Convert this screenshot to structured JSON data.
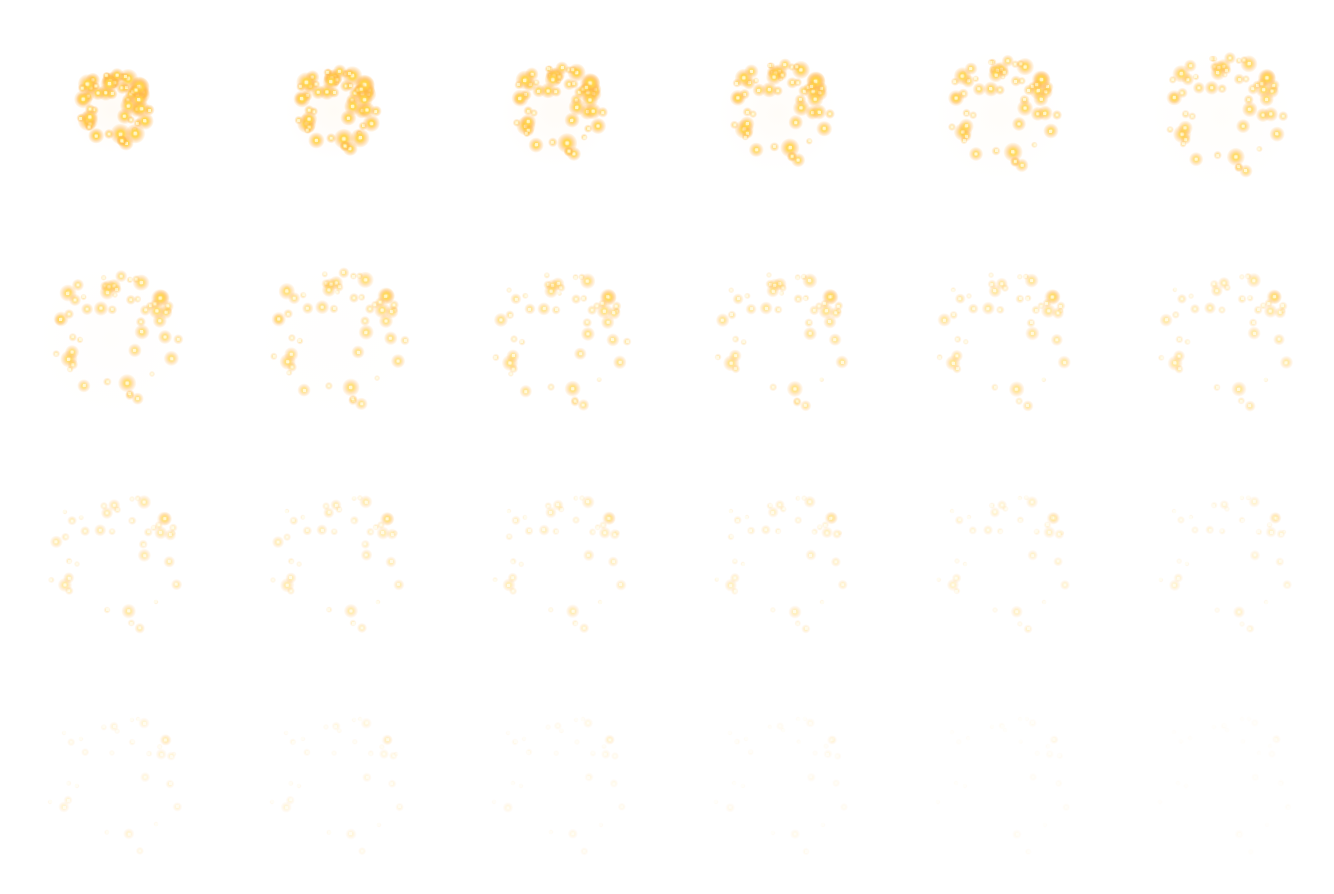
{
  "sprite_sheet": {
    "frame_count": 24,
    "columns": 6,
    "rows": 4,
    "colors": {
      "background": "#ffffff",
      "particle_core": "#fff6c8",
      "particle_mid": "#ffd54a",
      "particle_glow": "#ffb347"
    }
  }
}
